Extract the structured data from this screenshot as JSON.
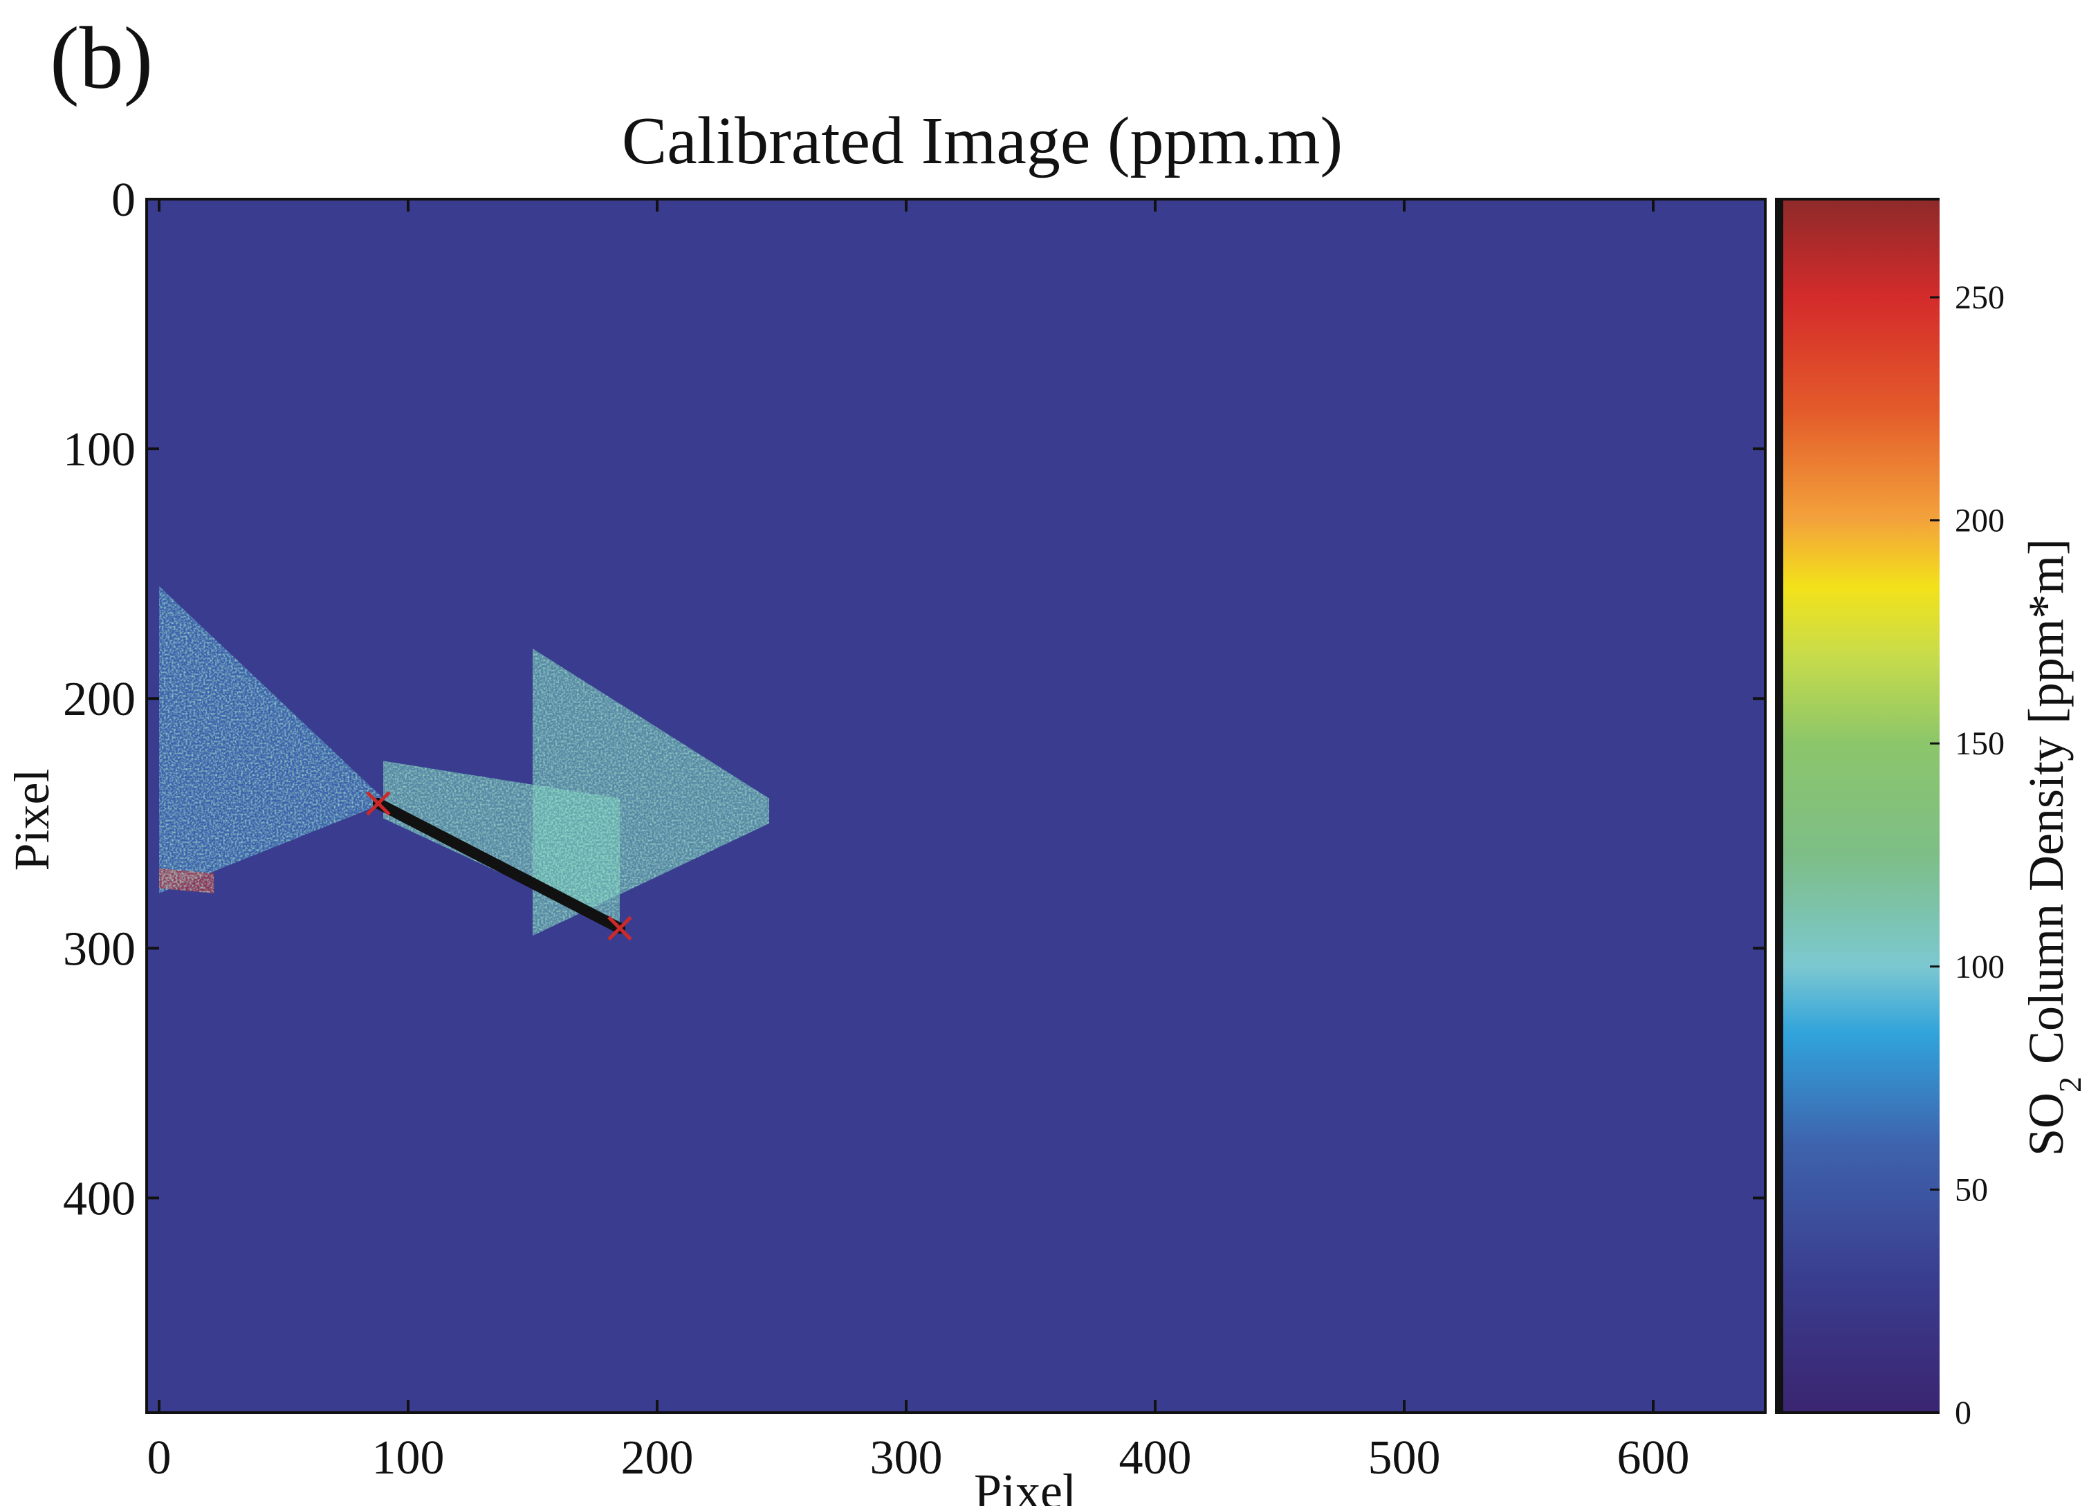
{
  "panel_label": "(b)",
  "chart_data": {
    "type": "heatmap",
    "title": "Calibrated Image (ppm.m)",
    "xlabel": "Pixel",
    "ylabel": "Pixel",
    "xlim": [
      -5,
      645
    ],
    "ylim": [
      0,
      486
    ],
    "y_axis_inverted": true,
    "x_ticks": [
      0,
      100,
      200,
      300,
      400,
      500,
      600
    ],
    "y_ticks": [
      0,
      100,
      200,
      300,
      400
    ],
    "background_value": 0,
    "colorbar": {
      "label_prefix": "SO",
      "label_subscript": "2",
      "label_suffix": " Column Density [ppm*m]",
      "range": [
        0,
        272
      ],
      "ticks": [
        0,
        50,
        100,
        150,
        200,
        250
      ],
      "colormap": "parula-jet",
      "stops": [
        {
          "v": 0,
          "color": "#3a2570"
        },
        {
          "v": 30,
          "color": "#3a3d8f"
        },
        {
          "v": 60,
          "color": "#3e63ad"
        },
        {
          "v": 85,
          "color": "#31a3db"
        },
        {
          "v": 100,
          "color": "#7cc8d1"
        },
        {
          "v": 125,
          "color": "#7dbe87"
        },
        {
          "v": 150,
          "color": "#8cc66a"
        },
        {
          "v": 170,
          "color": "#c8dc4a"
        },
        {
          "v": 185,
          "color": "#f3e21a"
        },
        {
          "v": 200,
          "color": "#f3a33b"
        },
        {
          "v": 225,
          "color": "#e35a2a"
        },
        {
          "v": 250,
          "color": "#d42b2b"
        },
        {
          "v": 272,
          "color": "#8e2a2a"
        }
      ]
    },
    "plume_regions": [
      {
        "x": [
          0,
          90
        ],
        "y_top": [
          155,
          240
        ],
        "y_bottom": [
          278,
          242
        ],
        "level": "low"
      },
      {
        "x": [
          90,
          185
        ],
        "y_top": [
          225,
          240
        ],
        "y_bottom": [
          248,
          292
        ],
        "level": "mid"
      },
      {
        "x": [
          150,
          245
        ],
        "y_top": [
          180,
          240
        ],
        "y_bottom": [
          295,
          250
        ],
        "level": "mid"
      },
      {
        "x": [
          0,
          22
        ],
        "y_top": [
          268,
          270
        ],
        "y_bottom": [
          276,
          278
        ],
        "level": "high"
      }
    ],
    "transect_line": {
      "x": [
        88,
        185
      ],
      "y": [
        242,
        292
      ],
      "color": "#111111"
    },
    "transect_markers": [
      {
        "x": 88,
        "y": 242,
        "color": "#cc2a2a"
      },
      {
        "x": 185,
        "y": 292,
        "color": "#cc2a2a"
      }
    ],
    "grid": false
  }
}
